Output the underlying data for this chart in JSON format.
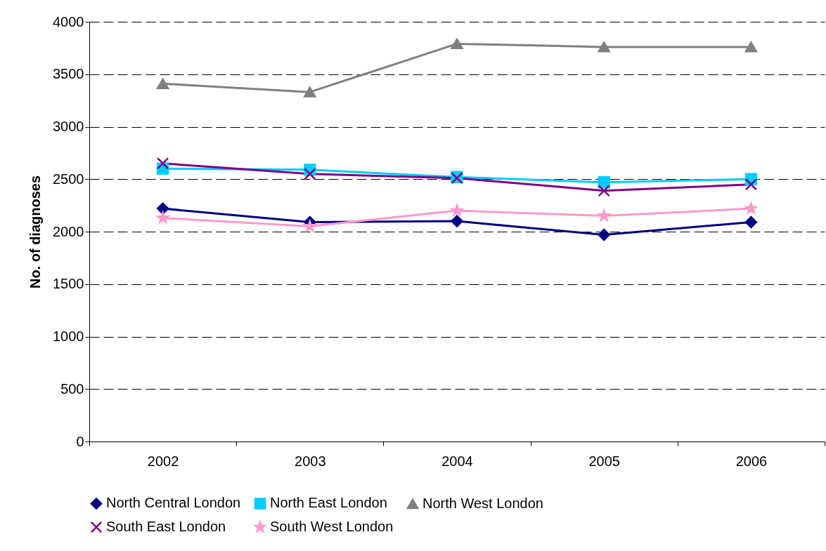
{
  "chart_data": {
    "type": "line",
    "ylabel": "No. of diagnoses",
    "categories": [
      "2002",
      "2003",
      "2004",
      "2005",
      "2006"
    ],
    "series": [
      {
        "name": "North Central London",
        "color": "#000080",
        "marker": "diamond",
        "values": [
          2220,
          2090,
          2100,
          1970,
          2090
        ]
      },
      {
        "name": "North East London",
        "color": "#00ccff",
        "marker": "square",
        "values": [
          2600,
          2590,
          2520,
          2470,
          2500
        ]
      },
      {
        "name": "North West London",
        "color": "#808080",
        "marker": "triangle",
        "values": [
          3410,
          3330,
          3790,
          3760,
          3760
        ]
      },
      {
        "name": "South East London",
        "color": "#800080",
        "marker": "cross",
        "values": [
          2650,
          2550,
          2510,
          2390,
          2450
        ]
      },
      {
        "name": "South West London",
        "color": "#ff99cc",
        "marker": "star",
        "values": [
          2130,
          2050,
          2200,
          2150,
          2220
        ]
      }
    ],
    "ylim": [
      0,
      4000
    ],
    "yticks": [
      0,
      500,
      1000,
      1500,
      2000,
      2500,
      3000,
      3500,
      4000
    ],
    "grid": "y",
    "legend": "bottom",
    "line_style": "solid"
  }
}
